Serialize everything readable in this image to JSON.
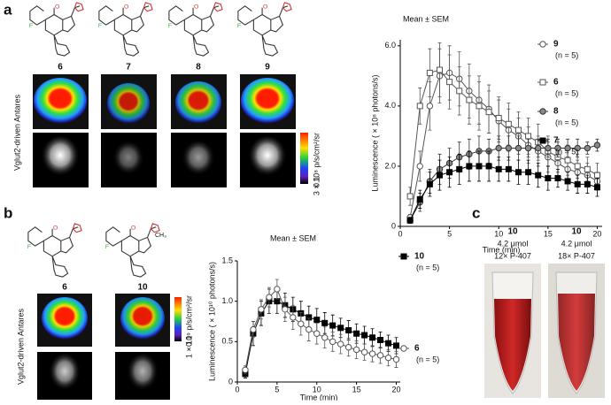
{
  "figure": {
    "panels": [
      "a",
      "b",
      "c"
    ],
    "a": {
      "compounds": [
        "6",
        "7",
        "8",
        "9"
      ],
      "side_label": "Vglut2-driven Antares",
      "scale_max": "3 × 10⁸ p/s/cm²/sr",
      "scale_min": "0.1"
    },
    "b": {
      "compounds": [
        "6",
        "10"
      ],
      "substituent": "CH₃",
      "side_label": "Vglut2-driven Antares",
      "scale_max": "1 × 10⁹ p/s/cm²/sr",
      "scale_min": "0.1"
    },
    "c": {
      "tubes": [
        [
          "10",
          "4.2 μmol",
          "12× P-407"
        ],
        [
          "10",
          "4.2 μmol",
          "18× P-407"
        ]
      ]
    }
  },
  "chart_data": [
    {
      "type": "line",
      "title": "Mean ± SEM",
      "x_label": "Time (min)",
      "y_label": "Luminescence ( × 10⁸ photons/s)",
      "x": [
        1,
        2,
        3,
        4,
        5,
        6,
        7,
        8,
        9,
        10,
        11,
        12,
        13,
        14,
        15,
        16,
        17,
        18,
        19,
        20
      ],
      "xlim": [
        0,
        20.5
      ],
      "xticks": [
        0,
        5,
        10,
        15,
        20
      ],
      "ylim": [
        0,
        6.2
      ],
      "yticks": [
        0,
        {
          "value": 2,
          "label": "2.0"
        },
        {
          "value": 4,
          "label": "4.0"
        },
        {
          "value": 6,
          "label": "6.0"
        }
      ],
      "series": [
        {
          "name": "9",
          "note": "(n = 5)",
          "color": "#555555",
          "marker": "circle",
          "fill": "#ffffff",
          "values": [
            0.3,
            2.0,
            4.0,
            5.0,
            5.1,
            4.9,
            4.5,
            4.2,
            3.9,
            3.5,
            3.2,
            3.0,
            2.7,
            2.5,
            2.3,
            2.1,
            1.9,
            1.8,
            1.7,
            1.5
          ],
          "errors": [
            0.1,
            0.5,
            0.8,
            0.9,
            0.9,
            0.9,
            0.9,
            0.8,
            0.8,
            0.7,
            0.7,
            0.6,
            0.6,
            0.5,
            0.5,
            0.5,
            0.4,
            0.4,
            0.4,
            0.3
          ]
        },
        {
          "name": "6",
          "note": "(n = 5)",
          "color": "#555555",
          "marker": "square",
          "fill": "#ffffff",
          "values": [
            1.0,
            4.0,
            5.1,
            5.2,
            4.8,
            4.5,
            4.2,
            4.0,
            3.8,
            3.6,
            3.4,
            3.2,
            3.0,
            2.8,
            2.5,
            2.3,
            2.2,
            2.0,
            1.9,
            1.7
          ],
          "errors": [
            0.3,
            0.6,
            0.8,
            0.9,
            0.9,
            0.8,
            0.8,
            0.8,
            0.7,
            0.7,
            0.7,
            0.6,
            0.6,
            0.6,
            0.5,
            0.5,
            0.5,
            0.4,
            0.4,
            0.4
          ]
        },
        {
          "name": "8",
          "note": "(n = 5)",
          "color": "#333333",
          "marker": "circle",
          "fill": "#888888",
          "values": [
            0.2,
            0.8,
            1.5,
            1.9,
            2.1,
            2.3,
            2.4,
            2.5,
            2.5,
            2.6,
            2.6,
            2.6,
            2.6,
            2.6,
            2.6,
            2.6,
            2.6,
            2.6,
            2.6,
            2.7
          ],
          "errors": [
            0.1,
            0.3,
            0.4,
            0.5,
            0.5,
            0.5,
            0.5,
            0.5,
            0.4,
            0.4,
            0.4,
            0.4,
            0.3,
            0.3,
            0.3,
            0.3,
            0.3,
            0.3,
            0.2,
            0.2
          ]
        },
        {
          "name": "7",
          "note": "(n = 5)",
          "color": "#000000",
          "marker": "square",
          "fill": "#000000",
          "values": [
            0.2,
            0.9,
            1.4,
            1.7,
            1.8,
            1.9,
            2.0,
            2.0,
            2.0,
            1.9,
            1.9,
            1.8,
            1.8,
            1.7,
            1.6,
            1.6,
            1.5,
            1.4,
            1.4,
            1.3
          ],
          "errors": [
            0.1,
            0.3,
            0.4,
            0.5,
            0.5,
            0.5,
            0.5,
            0.5,
            0.5,
            0.4,
            0.4,
            0.4,
            0.4,
            0.4,
            0.4,
            0.3,
            0.3,
            0.3,
            0.3,
            0.3
          ]
        }
      ]
    },
    {
      "type": "line",
      "title": "Mean ± SEM",
      "x_label": "Time (min)",
      "y_label": "Luminescence ( × 10¹⁰ photons/s)",
      "x": [
        1,
        2,
        3,
        4,
        5,
        6,
        7,
        8,
        9,
        10,
        11,
        12,
        13,
        14,
        15,
        16,
        17,
        18,
        19,
        20
      ],
      "xlim": [
        0,
        20.5
      ],
      "xticks": [
        0,
        5,
        10,
        15,
        20
      ],
      "ylim": [
        0,
        1.5
      ],
      "yticks": [
        0,
        0.5,
        {
          "value": 1,
          "label": "1.0"
        },
        1.5
      ],
      "series": [
        {
          "name": "10",
          "note": "(n = 5)",
          "color": "#000000",
          "marker": "square",
          "fill": "#000000",
          "values": [
            0.1,
            0.6,
            0.85,
            1.0,
            1.0,
            0.95,
            0.9,
            0.85,
            0.8,
            0.77,
            0.73,
            0.7,
            0.67,
            0.64,
            0.6,
            0.58,
            0.55,
            0.52,
            0.48,
            0.45
          ],
          "errors": [
            0.05,
            0.15,
            0.15,
            0.15,
            0.15,
            0.15,
            0.15,
            0.15,
            0.14,
            0.14,
            0.13,
            0.13,
            0.12,
            0.12,
            0.12,
            0.11,
            0.11,
            0.1,
            0.1,
            0.1
          ]
        },
        {
          "name": "6",
          "note": "(n = 5)",
          "color": "#555555",
          "marker": "circle",
          "fill": "#ffffff",
          "values": [
            0.15,
            0.65,
            0.9,
            1.05,
            1.15,
            0.9,
            0.8,
            0.72,
            0.65,
            0.6,
            0.55,
            0.5,
            0.47,
            0.43,
            0.4,
            0.37,
            0.35,
            0.33,
            0.3,
            0.28
          ],
          "errors": [
            0.05,
            0.1,
            0.12,
            0.12,
            0.12,
            0.15,
            0.15,
            0.14,
            0.14,
            0.13,
            0.13,
            0.12,
            0.12,
            0.11,
            0.11,
            0.1,
            0.1,
            0.1,
            0.1,
            0.1
          ]
        }
      ]
    }
  ]
}
